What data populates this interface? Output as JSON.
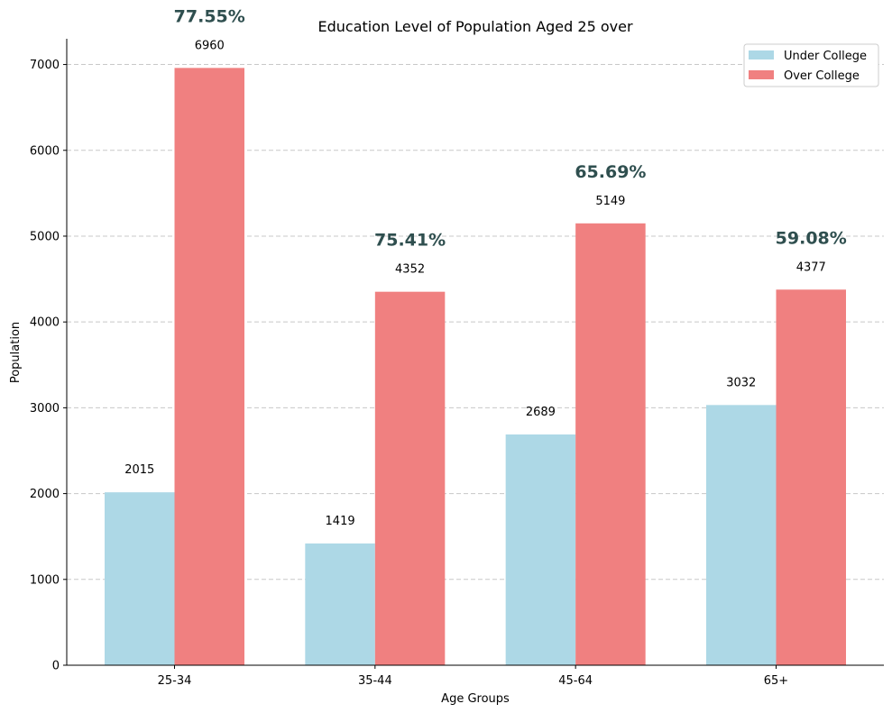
{
  "chart_data": {
    "type": "bar",
    "title": "Education Level of Population Aged 25 over",
    "xlabel": "Age Groups",
    "ylabel": "Population",
    "categories": [
      "25-34",
      "35-44",
      "45-64",
      "65+"
    ],
    "series": [
      {
        "name": "Under College",
        "values": [
          2015,
          1419,
          2689,
          3032
        ],
        "color": "#add8e6"
      },
      {
        "name": "Over College",
        "values": [
          6960,
          4352,
          5149,
          4377
        ],
        "color": "#f08080"
      }
    ],
    "percent_labels": [
      "77.55%",
      "75.41%",
      "65.69%",
      "59.08%"
    ],
    "percent_color": "#2f4f4f",
    "ylim": [
      0,
      7300
    ],
    "yticks": [
      0,
      1000,
      2000,
      3000,
      4000,
      5000,
      6000,
      7000
    ],
    "grid": "y-dashed",
    "legend_position": "top-right"
  }
}
